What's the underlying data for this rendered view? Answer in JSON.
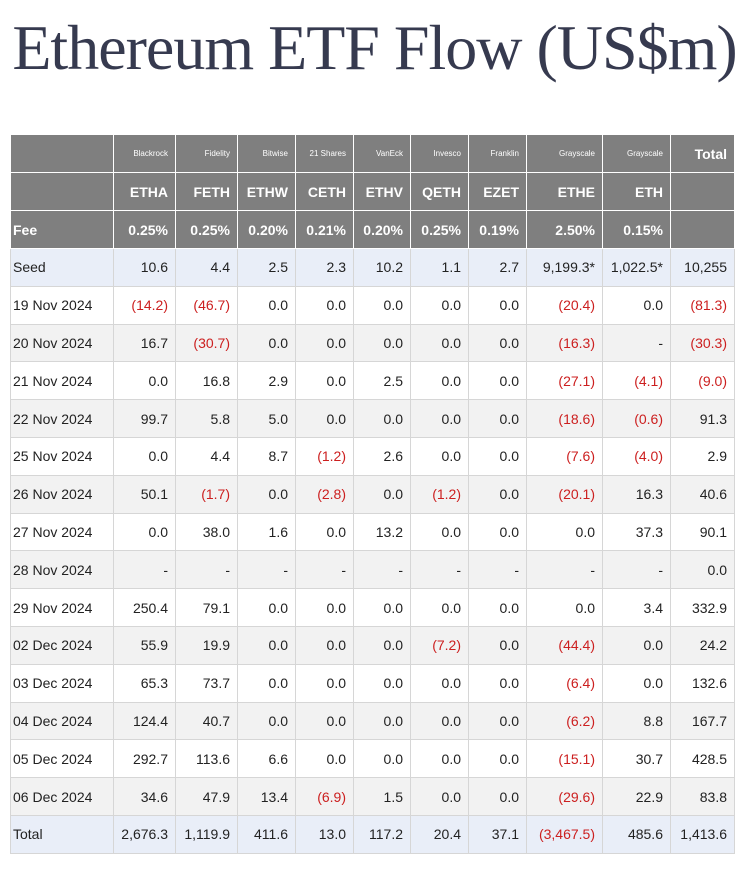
{
  "title": "Ethereum ETF Flow (US$m)",
  "issuers": [
    "Blackrock",
    "Fidelity",
    "Bitwise",
    "21 Shares",
    "VanEck",
    "Invesco",
    "Franklin",
    "Grayscale",
    "Grayscale"
  ],
  "tickers": [
    "ETHA",
    "FETH",
    "ETHW",
    "CETH",
    "ETHV",
    "QETH",
    "EZET",
    "ETHE",
    "ETH"
  ],
  "fee_label": "Fee",
  "fees": [
    "0.25%",
    "0.25%",
    "0.20%",
    "0.21%",
    "0.20%",
    "0.25%",
    "0.19%",
    "2.50%",
    "0.15%"
  ],
  "total_label": "Total",
  "negative_color": "#cc1f1f",
  "header_color": "#7f7f7f",
  "rows": [
    {
      "label": "Seed",
      "values": [
        "10.6",
        "4.4",
        "2.5",
        "2.3",
        "10.2",
        "1.1",
        "2.7",
        "9,199.3*",
        "1,022.5*",
        "10,255"
      ]
    },
    {
      "label": "19 Nov 2024",
      "values": [
        "(14.2)",
        "(46.7)",
        "0.0",
        "0.0",
        "0.0",
        "0.0",
        "0.0",
        "(20.4)",
        "0.0",
        "(81.3)"
      ]
    },
    {
      "label": "20 Nov 2024",
      "values": [
        "16.7",
        "(30.7)",
        "0.0",
        "0.0",
        "0.0",
        "0.0",
        "0.0",
        "(16.3)",
        "-",
        "(30.3)"
      ]
    },
    {
      "label": "21 Nov 2024",
      "values": [
        "0.0",
        "16.8",
        "2.9",
        "0.0",
        "2.5",
        "0.0",
        "0.0",
        "(27.1)",
        "(4.1)",
        "(9.0)"
      ]
    },
    {
      "label": "22 Nov 2024",
      "values": [
        "99.7",
        "5.8",
        "5.0",
        "0.0",
        "0.0",
        "0.0",
        "0.0",
        "(18.6)",
        "(0.6)",
        "91.3"
      ]
    },
    {
      "label": "25 Nov 2024",
      "values": [
        "0.0",
        "4.4",
        "8.7",
        "(1.2)",
        "2.6",
        "0.0",
        "0.0",
        "(7.6)",
        "(4.0)",
        "2.9"
      ]
    },
    {
      "label": "26 Nov 2024",
      "values": [
        "50.1",
        "(1.7)",
        "0.0",
        "(2.8)",
        "0.0",
        "(1.2)",
        "0.0",
        "(20.1)",
        "16.3",
        "40.6"
      ]
    },
    {
      "label": "27 Nov 2024",
      "values": [
        "0.0",
        "38.0",
        "1.6",
        "0.0",
        "13.2",
        "0.0",
        "0.0",
        "0.0",
        "37.3",
        "90.1"
      ]
    },
    {
      "label": "28 Nov 2024",
      "values": [
        "-",
        "-",
        "-",
        "-",
        "-",
        "-",
        "-",
        "-",
        "-",
        "0.0"
      ]
    },
    {
      "label": "29 Nov 2024",
      "values": [
        "250.4",
        "79.1",
        "0.0",
        "0.0",
        "0.0",
        "0.0",
        "0.0",
        "0.0",
        "3.4",
        "332.9"
      ]
    },
    {
      "label": "02 Dec 2024",
      "values": [
        "55.9",
        "19.9",
        "0.0",
        "0.0",
        "0.0",
        "(7.2)",
        "0.0",
        "(44.4)",
        "0.0",
        "24.2"
      ]
    },
    {
      "label": "03 Dec 2024",
      "values": [
        "65.3",
        "73.7",
        "0.0",
        "0.0",
        "0.0",
        "0.0",
        "0.0",
        "(6.4)",
        "0.0",
        "132.6"
      ]
    },
    {
      "label": "04 Dec 2024",
      "values": [
        "124.4",
        "40.7",
        "0.0",
        "0.0",
        "0.0",
        "0.0",
        "0.0",
        "(6.2)",
        "8.8",
        "167.7"
      ]
    },
    {
      "label": "05 Dec 2024",
      "values": [
        "292.7",
        "113.6",
        "6.6",
        "0.0",
        "0.0",
        "0.0",
        "0.0",
        "(15.1)",
        "30.7",
        "428.5"
      ]
    },
    {
      "label": "06 Dec 2024",
      "values": [
        "34.6",
        "47.9",
        "13.4",
        "(6.9)",
        "1.5",
        "0.0",
        "0.0",
        "(29.6)",
        "22.9",
        "83.8"
      ]
    },
    {
      "label": "Total",
      "values": [
        "2,676.3",
        "1,119.9",
        "411.6",
        "13.0",
        "117.2",
        "20.4",
        "37.1",
        "(3,467.5)",
        "485.6",
        "1,413.6"
      ]
    }
  ]
}
